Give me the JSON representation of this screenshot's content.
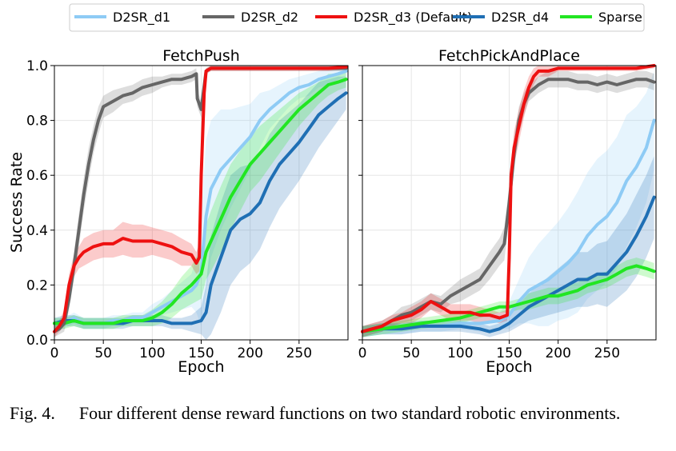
{
  "caption": {
    "label": "Fig. 4.",
    "text": "Four different dense reward functions on two standard robotic environments."
  },
  "legend": [
    {
      "name": "D2SR_d1",
      "color": "#8ecbf5"
    },
    {
      "name": "D2SR_d2",
      "color": "#666666"
    },
    {
      "name": "D2SR_d3 (Default)",
      "color": "#ee1111"
    },
    {
      "name": "D2SR_d4",
      "color": "#1f6fb4"
    },
    {
      "name": "Sparse",
      "color": "#22e622"
    }
  ],
  "chart_data": [
    {
      "type": "line",
      "title": "FetchPush",
      "xlabel": "Epoch",
      "ylabel": "Success Rate",
      "xlim": [
        0,
        300
      ],
      "ylim": [
        0,
        1.0
      ],
      "xticks": [
        "0",
        "50",
        "100",
        "150",
        "200",
        "250"
      ],
      "yticks": [
        "0.0",
        "0.2",
        "0.4",
        "0.6",
        "0.8",
        "1.0"
      ],
      "grid": true,
      "series": [
        {
          "name": "D2SR_d1",
          "color": "#8ecbf5",
          "x": [
            0,
            10,
            20,
            30,
            40,
            50,
            60,
            70,
            80,
            90,
            100,
            110,
            120,
            130,
            140,
            145,
            150,
            155,
            160,
            170,
            180,
            190,
            200,
            210,
            220,
            230,
            240,
            250,
            260,
            270,
            280,
            290,
            298
          ],
          "y": [
            0.06,
            0.06,
            0.08,
            0.06,
            0.06,
            0.06,
            0.07,
            0.07,
            0.08,
            0.08,
            0.1,
            0.12,
            0.14,
            0.16,
            0.18,
            0.2,
            0.25,
            0.45,
            0.55,
            0.62,
            0.66,
            0.7,
            0.74,
            0.8,
            0.84,
            0.87,
            0.9,
            0.92,
            0.93,
            0.95,
            0.96,
            0.97,
            0.98
          ],
          "band": [
            0.02,
            0.02,
            0.02,
            0.02,
            0.02,
            0.02,
            0.02,
            0.02,
            0.02,
            0.02,
            0.03,
            0.03,
            0.04,
            0.05,
            0.06,
            0.1,
            0.2,
            0.28,
            0.25,
            0.22,
            0.18,
            0.15,
            0.12,
            0.1,
            0.07,
            0.06,
            0.05,
            0.04,
            0.04,
            0.03,
            0.03,
            0.02,
            0.02
          ]
        },
        {
          "name": "D2SR_d2",
          "color": "#666666",
          "x": [
            0,
            5,
            10,
            15,
            20,
            25,
            30,
            35,
            40,
            45,
            50,
            60,
            70,
            80,
            90,
            100,
            110,
            120,
            130,
            140,
            145,
            146,
            150,
            155,
            160,
            170,
            180,
            200,
            220,
            240,
            260,
            280,
            298
          ],
          "y": [
            0.03,
            0.04,
            0.06,
            0.15,
            0.27,
            0.4,
            0.53,
            0.64,
            0.73,
            0.8,
            0.85,
            0.87,
            0.89,
            0.9,
            0.92,
            0.93,
            0.94,
            0.95,
            0.95,
            0.96,
            0.97,
            0.88,
            0.84,
            0.98,
            0.99,
            0.99,
            0.99,
            0.99,
            0.99,
            0.99,
            0.99,
            0.99,
            0.99
          ],
          "band": [
            0.02,
            0.02,
            0.03,
            0.04,
            0.05,
            0.06,
            0.06,
            0.06,
            0.05,
            0.05,
            0.04,
            0.04,
            0.03,
            0.03,
            0.03,
            0.03,
            0.02,
            0.02,
            0.02,
            0.02,
            0.02,
            0.03,
            0.03,
            0.01,
            0.01,
            0.01,
            0.01,
            0.01,
            0.01,
            0.01,
            0.01,
            0.01,
            0.01
          ]
        },
        {
          "name": "D2SR_d3 (Default)",
          "color": "#ee1111",
          "x": [
            0,
            5,
            10,
            15,
            20,
            25,
            30,
            40,
            50,
            60,
            70,
            80,
            90,
            100,
            110,
            120,
            130,
            140,
            145,
            148,
            150,
            153,
            155,
            160,
            170,
            180,
            200,
            220,
            240,
            260,
            280,
            298
          ],
          "y": [
            0.03,
            0.05,
            0.08,
            0.2,
            0.27,
            0.3,
            0.32,
            0.34,
            0.35,
            0.35,
            0.37,
            0.36,
            0.36,
            0.36,
            0.35,
            0.34,
            0.32,
            0.31,
            0.28,
            0.3,
            0.6,
            0.9,
            0.98,
            0.99,
            0.99,
            0.99,
            0.99,
            0.99,
            0.99,
            0.99,
            0.99,
            0.995
          ],
          "band": [
            0.02,
            0.02,
            0.03,
            0.04,
            0.04,
            0.04,
            0.05,
            0.05,
            0.05,
            0.05,
            0.06,
            0.06,
            0.06,
            0.05,
            0.05,
            0.05,
            0.05,
            0.04,
            0.04,
            0.05,
            0.05,
            0.02,
            0.01,
            0.01,
            0.01,
            0.01,
            0.01,
            0.01,
            0.01,
            0.01,
            0.01,
            0.01
          ]
        },
        {
          "name": "D2SR_d4",
          "color": "#1f6fb4",
          "x": [
            0,
            10,
            20,
            30,
            40,
            50,
            60,
            70,
            80,
            90,
            100,
            110,
            120,
            130,
            140,
            150,
            155,
            160,
            170,
            180,
            190,
            200,
            210,
            220,
            230,
            240,
            250,
            260,
            270,
            280,
            290,
            298
          ],
          "y": [
            0.06,
            0.07,
            0.07,
            0.06,
            0.06,
            0.06,
            0.06,
            0.06,
            0.07,
            0.07,
            0.07,
            0.07,
            0.06,
            0.06,
            0.06,
            0.07,
            0.1,
            0.2,
            0.3,
            0.4,
            0.44,
            0.46,
            0.5,
            0.58,
            0.64,
            0.68,
            0.72,
            0.77,
            0.82,
            0.85,
            0.88,
            0.9
          ],
          "band": [
            0.02,
            0.02,
            0.02,
            0.02,
            0.02,
            0.02,
            0.02,
            0.02,
            0.02,
            0.02,
            0.02,
            0.02,
            0.02,
            0.02,
            0.03,
            0.05,
            0.1,
            0.18,
            0.2,
            0.2,
            0.19,
            0.18,
            0.17,
            0.17,
            0.16,
            0.15,
            0.14,
            0.13,
            0.12,
            0.1,
            0.08,
            0.06
          ]
        },
        {
          "name": "Sparse",
          "color": "#22e622",
          "x": [
            0,
            10,
            20,
            30,
            40,
            50,
            60,
            70,
            80,
            90,
            100,
            110,
            120,
            130,
            140,
            150,
            155,
            160,
            170,
            180,
            190,
            200,
            210,
            220,
            230,
            240,
            250,
            260,
            270,
            280,
            290,
            298
          ],
          "y": [
            0.06,
            0.06,
            0.07,
            0.06,
            0.06,
            0.06,
            0.06,
            0.07,
            0.07,
            0.07,
            0.08,
            0.1,
            0.13,
            0.17,
            0.2,
            0.24,
            0.32,
            0.36,
            0.44,
            0.52,
            0.58,
            0.64,
            0.68,
            0.72,
            0.76,
            0.8,
            0.84,
            0.87,
            0.9,
            0.93,
            0.94,
            0.95
          ],
          "band": [
            0.02,
            0.02,
            0.02,
            0.02,
            0.02,
            0.02,
            0.02,
            0.02,
            0.02,
            0.02,
            0.03,
            0.04,
            0.05,
            0.06,
            0.07,
            0.09,
            0.1,
            0.11,
            0.12,
            0.12,
            0.11,
            0.1,
            0.1,
            0.09,
            0.08,
            0.07,
            0.06,
            0.05,
            0.04,
            0.04,
            0.03,
            0.03
          ]
        }
      ]
    },
    {
      "type": "line",
      "title": "FetchPickAndPlace",
      "xlabel": "Epoch",
      "ylabel": "",
      "xlim": [
        0,
        300
      ],
      "ylim": [
        0,
        1.0
      ],
      "xticks": [
        "0",
        "50",
        "100",
        "150",
        "200",
        "250"
      ],
      "yticks": [],
      "grid": true,
      "series": [
        {
          "name": "D2SR_d1",
          "color": "#8ecbf5",
          "x": [
            0,
            20,
            40,
            60,
            80,
            100,
            120,
            140,
            150,
            160,
            170,
            180,
            190,
            200,
            210,
            220,
            230,
            240,
            250,
            260,
            270,
            280,
            290,
            298
          ],
          "y": [
            0.03,
            0.04,
            0.04,
            0.05,
            0.05,
            0.06,
            0.06,
            0.07,
            0.09,
            0.14,
            0.18,
            0.2,
            0.22,
            0.25,
            0.28,
            0.32,
            0.38,
            0.42,
            0.45,
            0.5,
            0.58,
            0.63,
            0.7,
            0.8
          ],
          "band": [
            0.02,
            0.02,
            0.02,
            0.02,
            0.02,
            0.02,
            0.03,
            0.03,
            0.05,
            0.08,
            0.12,
            0.15,
            0.17,
            0.18,
            0.2,
            0.22,
            0.23,
            0.24,
            0.24,
            0.24,
            0.24,
            0.22,
            0.2,
            0.18
          ]
        },
        {
          "name": "D2SR_d2",
          "color": "#666666",
          "x": [
            0,
            10,
            20,
            30,
            40,
            50,
            60,
            70,
            80,
            90,
            100,
            110,
            120,
            130,
            140,
            145,
            150,
            155,
            160,
            165,
            170,
            180,
            190,
            200,
            210,
            220,
            230,
            240,
            250,
            260,
            270,
            280,
            290,
            298
          ],
          "y": [
            0.03,
            0.04,
            0.05,
            0.07,
            0.09,
            0.1,
            0.12,
            0.14,
            0.13,
            0.16,
            0.18,
            0.2,
            0.22,
            0.27,
            0.32,
            0.35,
            0.5,
            0.68,
            0.8,
            0.86,
            0.9,
            0.93,
            0.95,
            0.95,
            0.95,
            0.94,
            0.94,
            0.93,
            0.94,
            0.93,
            0.94,
            0.95,
            0.95,
            0.94
          ],
          "band": [
            0.02,
            0.02,
            0.02,
            0.02,
            0.03,
            0.03,
            0.03,
            0.03,
            0.03,
            0.03,
            0.04,
            0.04,
            0.04,
            0.05,
            0.05,
            0.06,
            0.06,
            0.06,
            0.05,
            0.04,
            0.03,
            0.03,
            0.03,
            0.03,
            0.03,
            0.03,
            0.03,
            0.03,
            0.03,
            0.03,
            0.03,
            0.03,
            0.03,
            0.03
          ]
        },
        {
          "name": "D2SR_d3 (Default)",
          "color": "#ee1111",
          "x": [
            0,
            10,
            20,
            30,
            40,
            50,
            60,
            70,
            80,
            90,
            100,
            110,
            120,
            130,
            140,
            148,
            150,
            152,
            155,
            160,
            165,
            170,
            175,
            180,
            190,
            200,
            220,
            240,
            260,
            280,
            298
          ],
          "y": [
            0.03,
            0.04,
            0.05,
            0.07,
            0.08,
            0.09,
            0.11,
            0.14,
            0.12,
            0.1,
            0.1,
            0.1,
            0.09,
            0.09,
            0.08,
            0.09,
            0.3,
            0.6,
            0.7,
            0.78,
            0.86,
            0.92,
            0.96,
            0.98,
            0.98,
            0.99,
            0.99,
            0.99,
            0.99,
            0.99,
            1.0
          ],
          "band": [
            0.02,
            0.02,
            0.02,
            0.02,
            0.02,
            0.03,
            0.03,
            0.03,
            0.03,
            0.03,
            0.03,
            0.03,
            0.03,
            0.02,
            0.02,
            0.02,
            0.04,
            0.05,
            0.06,
            0.06,
            0.05,
            0.04,
            0.03,
            0.02,
            0.02,
            0.01,
            0.01,
            0.01,
            0.01,
            0.01,
            0.01
          ]
        },
        {
          "name": "D2SR_d4",
          "color": "#1f6fb4",
          "x": [
            0,
            20,
            40,
            60,
            80,
            100,
            120,
            130,
            140,
            150,
            160,
            170,
            180,
            190,
            200,
            210,
            220,
            230,
            240,
            250,
            260,
            270,
            280,
            290,
            298
          ],
          "y": [
            0.03,
            0.04,
            0.04,
            0.05,
            0.05,
            0.05,
            0.04,
            0.03,
            0.04,
            0.06,
            0.09,
            0.12,
            0.14,
            0.16,
            0.18,
            0.2,
            0.22,
            0.22,
            0.24,
            0.24,
            0.28,
            0.32,
            0.38,
            0.45,
            0.52
          ],
          "band": [
            0.02,
            0.02,
            0.02,
            0.02,
            0.02,
            0.02,
            0.02,
            0.02,
            0.02,
            0.03,
            0.04,
            0.05,
            0.06,
            0.07,
            0.08,
            0.09,
            0.1,
            0.1,
            0.11,
            0.12,
            0.13,
            0.14,
            0.15,
            0.15,
            0.15
          ]
        },
        {
          "name": "Sparse",
          "color": "#22e622",
          "x": [
            0,
            20,
            40,
            60,
            80,
            100,
            120,
            140,
            150,
            160,
            170,
            180,
            190,
            200,
            210,
            220,
            230,
            240,
            250,
            260,
            270,
            280,
            290,
            298
          ],
          "y": [
            0.03,
            0.04,
            0.05,
            0.06,
            0.07,
            0.08,
            0.1,
            0.12,
            0.12,
            0.13,
            0.14,
            0.15,
            0.16,
            0.16,
            0.17,
            0.18,
            0.2,
            0.21,
            0.22,
            0.24,
            0.26,
            0.27,
            0.26,
            0.25
          ],
          "band": [
            0.02,
            0.02,
            0.02,
            0.02,
            0.02,
            0.02,
            0.02,
            0.02,
            0.02,
            0.02,
            0.03,
            0.03,
            0.03,
            0.03,
            0.03,
            0.03,
            0.03,
            0.03,
            0.03,
            0.03,
            0.03,
            0.03,
            0.03,
            0.03
          ]
        }
      ]
    }
  ]
}
